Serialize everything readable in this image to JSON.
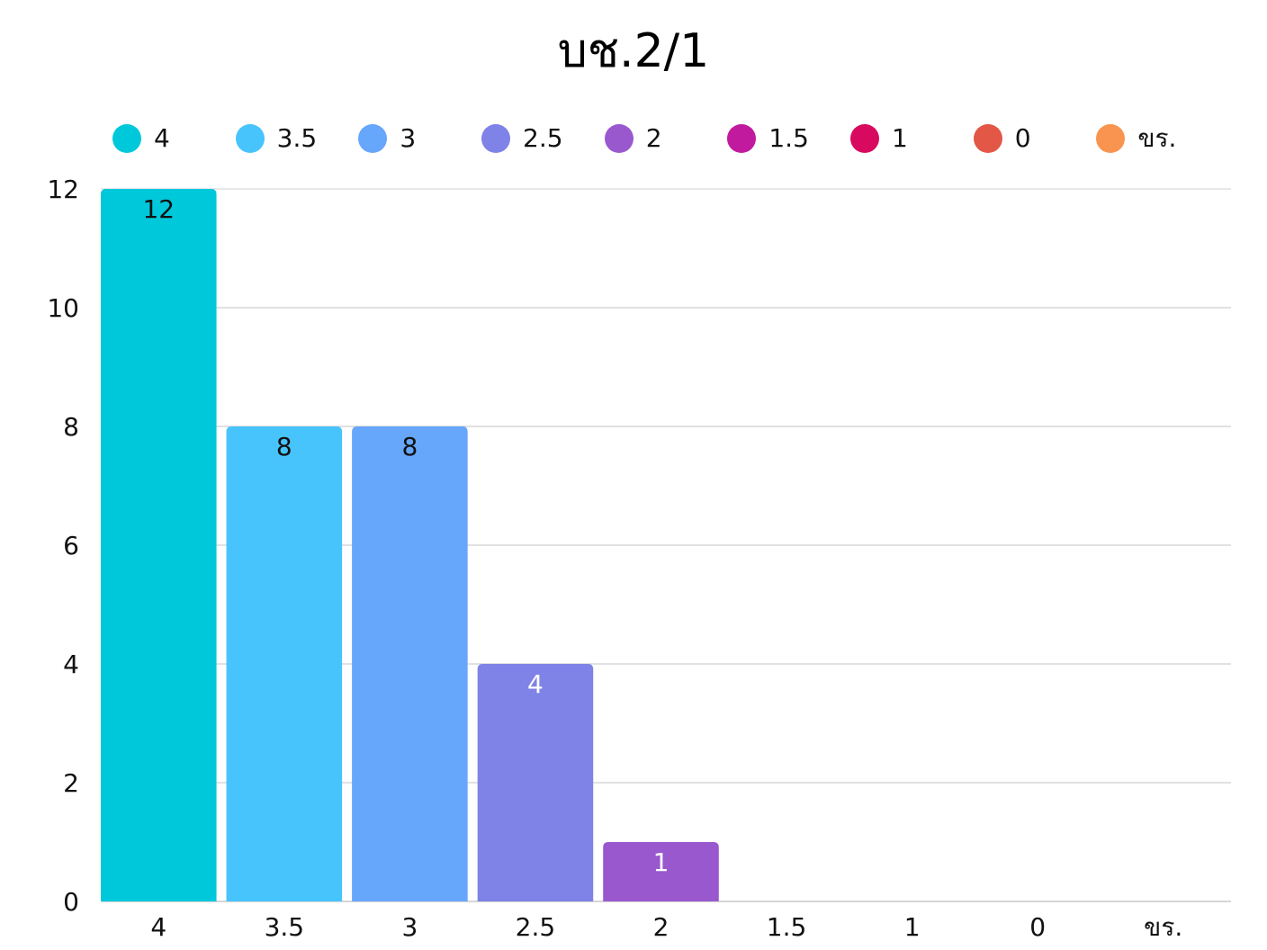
{
  "chart_data": {
    "type": "bar",
    "title": "บช.2/1",
    "xlabel": "",
    "ylabel": "",
    "categories": [
      "4",
      "3.5",
      "3",
      "2.5",
      "2",
      "1.5",
      "1",
      "0",
      "ขร."
    ],
    "values": [
      12,
      8,
      8,
      4,
      1,
      0,
      0,
      0,
      0
    ],
    "data_labels": [
      "12",
      "8",
      "8",
      "4",
      "1",
      "",
      "",
      "",
      ""
    ],
    "colors": [
      "#00c8db",
      "#48c4fd",
      "#66a6fb",
      "#7f82e6",
      "#9958ce",
      "#c21a9f",
      "#d80a5f",
      "#e25745",
      "#f8944f"
    ],
    "label_colors": [
      "#111111",
      "#111111",
      "#111111",
      "#ffffff",
      "#ffffff",
      "#ffffff",
      "#ffffff",
      "#ffffff",
      "#ffffff"
    ],
    "legend": {
      "position": "top",
      "entries": [
        "4",
        "3.5",
        "3",
        "2.5",
        "2",
        "1.5",
        "1",
        "0",
        "ขร."
      ]
    },
    "ylim": [
      0,
      12
    ],
    "yticks": [
      0,
      2,
      4,
      6,
      8,
      10,
      12
    ],
    "grid": true,
    "grid_color": "#cfcfcf"
  }
}
